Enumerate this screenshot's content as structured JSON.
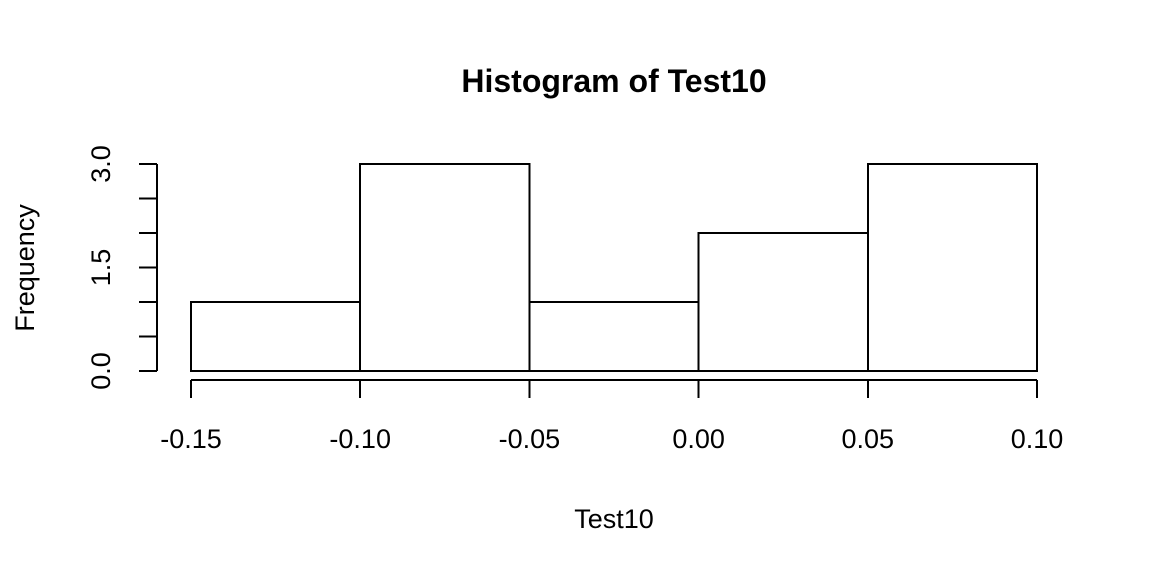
{
  "chart_data": {
    "type": "bar",
    "title": "Histogram of Test10",
    "xlabel": "Test10",
    "ylabel": "Frequency",
    "bins": [
      {
        "from": -0.15,
        "to": -0.1,
        "count": 1
      },
      {
        "from": -0.1,
        "to": -0.05,
        "count": 3
      },
      {
        "from": -0.05,
        "to": 0.0,
        "count": 1
      },
      {
        "from": 0.0,
        "to": 0.05,
        "count": 2
      },
      {
        "from": 0.05,
        "to": 0.1,
        "count": 3
      }
    ],
    "xlim": [
      -0.15,
      0.1
    ],
    "ylim": [
      0,
      3
    ],
    "x_ticks": [
      -0.15,
      -0.1,
      -0.05,
      0.0,
      0.05,
      0.1
    ],
    "x_tick_labels": [
      "-0.15",
      "-0.10",
      "-0.05",
      "0.00",
      "0.05",
      "0.10"
    ],
    "y_ticks": [
      0,
      0.5,
      1,
      1.5,
      2,
      2.5,
      3
    ],
    "y_tick_labels": [
      {
        "value": 0,
        "label": "0.0"
      },
      {
        "value": 1.5,
        "label": "1.5"
      },
      {
        "value": 3,
        "label": "3.0"
      }
    ],
    "grid": false,
    "colors": {
      "bar_fill": "#ffffff",
      "bar_stroke": "#000000"
    }
  }
}
